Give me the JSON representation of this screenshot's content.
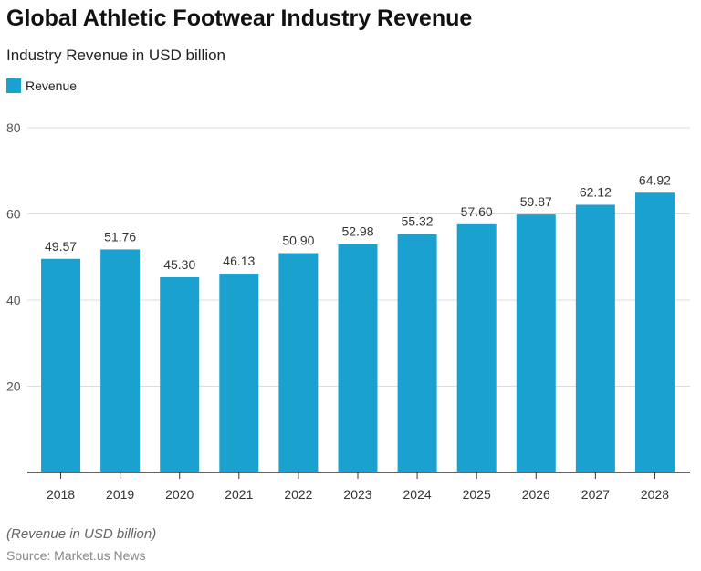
{
  "chart_data": {
    "type": "bar",
    "title": "Global Athletic Footwear Industry Revenue",
    "subtitle": "Industry Revenue in USD billion",
    "categories": [
      "2018",
      "2019",
      "2020",
      "2021",
      "2022",
      "2023",
      "2024",
      "2025",
      "2026",
      "2027",
      "2028"
    ],
    "series": [
      {
        "name": "Revenue",
        "values": [
          49.57,
          51.76,
          45.3,
          46.13,
          50.9,
          52.98,
          55.32,
          57.6,
          59.87,
          62.12,
          64.92
        ],
        "color": "#1ba1cf"
      }
    ],
    "data_labels": [
      "49.57",
      "51.76",
      "45.30",
      "46.13",
      "50.90",
      "52.98",
      "55.32",
      "57.60",
      "59.87",
      "62.12",
      "64.92"
    ],
    "yticks": [
      20,
      40,
      60,
      80
    ],
    "ylim": [
      0,
      80
    ],
    "grid": true,
    "legend_position": "top-left",
    "note": "(Revenue in USD billion)",
    "source": "Source: Market.us News"
  }
}
